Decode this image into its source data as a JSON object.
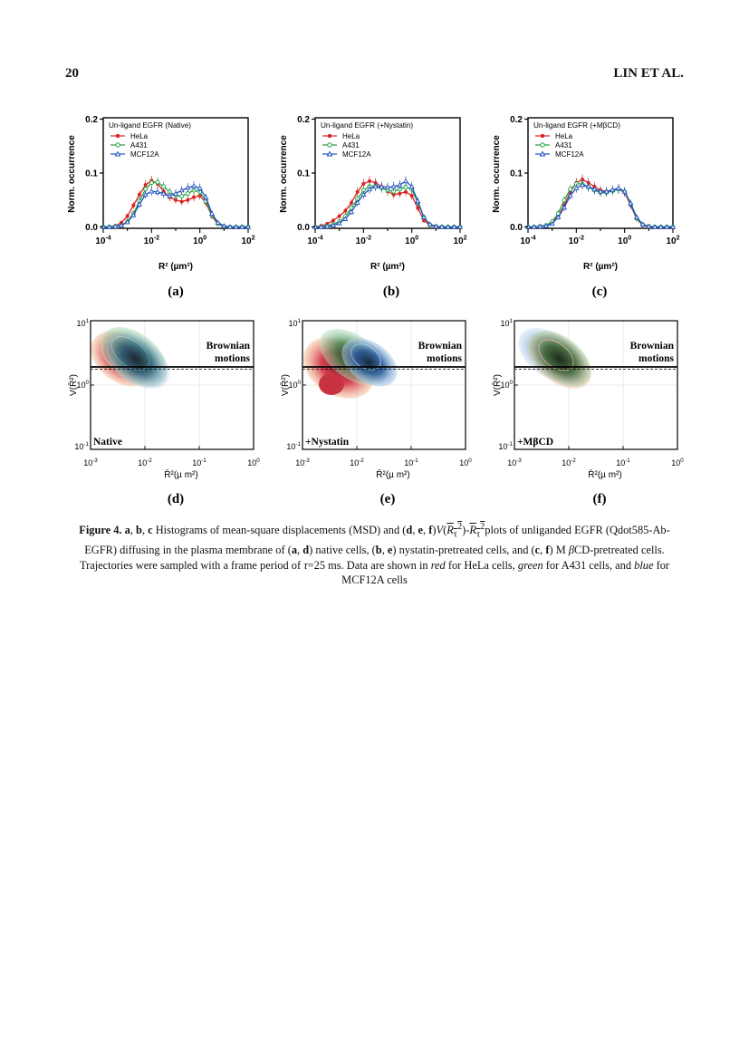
{
  "header": {
    "page_number": "20",
    "running_head": "LIN ET AL."
  },
  "histograms": {
    "y_axis_label": "Norm. occurrence",
    "x_axis_label": "R² (µm²)",
    "x_ticks": [
      "10-4",
      "10-2",
      "100",
      "102"
    ],
    "y_ticks": [
      "0.0",
      "0.1",
      "0.2"
    ],
    "legend": [
      "HeLa",
      "A431",
      "MCF12A"
    ],
    "colors": {
      "HeLa": "#e02020",
      "A431": "#20a040",
      "MCF12A": "#2050c0"
    },
    "panels": [
      {
        "title": "Un-ligand EGFR (Native)",
        "letter": "(a)"
      },
      {
        "title": "Un-ligand EGFR (+Nystatin)",
        "letter": "(b)"
      },
      {
        "title": "Un-ligand EGFR (+MβCD)",
        "letter": "(c)"
      }
    ]
  },
  "contours": {
    "y_axis_label": "V(R̄²)",
    "x_axis_label": "R̄²(µ m²)",
    "x_ticks": [
      "10-3",
      "10-2",
      "10-1",
      "100"
    ],
    "y_ticks": [
      "101",
      "100",
      "10-1"
    ],
    "brownian_label": [
      "Brownian",
      "motions"
    ],
    "panels": [
      {
        "condition": "Native",
        "letter": "(d)"
      },
      {
        "condition": "+Nystatin",
        "letter": "(e)"
      },
      {
        "condition": "+MβCD",
        "letter": "(f)"
      }
    ]
  },
  "chart_data": [
    {
      "type": "line",
      "title": "Un-ligand EGFR (Native)",
      "xlabel": "R² (µm²)",
      "ylabel": "Norm. occurrence",
      "xscale": "log",
      "xlim": [
        0.0001,
        100
      ],
      "ylim": [
        0,
        0.2
      ],
      "x": [
        0.0001,
        0.000178,
        0.000316,
        0.000562,
        0.001,
        0.00178,
        0.00316,
        0.00562,
        0.01,
        0.0178,
        0.0316,
        0.0562,
        0.1,
        0.178,
        0.316,
        0.562,
        1,
        1.78,
        3.16,
        5.62,
        10,
        17.8,
        31.6,
        56.2,
        100
      ],
      "series": [
        {
          "name": "HeLa",
          "values": [
            0,
            0,
            0.002,
            0.008,
            0.02,
            0.04,
            0.06,
            0.078,
            0.086,
            0.08,
            0.066,
            0.055,
            0.05,
            0.047,
            0.05,
            0.055,
            0.058,
            0.045,
            0.02,
            0.005,
            0.001,
            0,
            0,
            0,
            0
          ]
        },
        {
          "name": "A431",
          "values": [
            0,
            0,
            0.001,
            0.003,
            0.01,
            0.025,
            0.048,
            0.07,
            0.082,
            0.083,
            0.075,
            0.065,
            0.058,
            0.057,
            0.062,
            0.068,
            0.065,
            0.048,
            0.022,
            0.006,
            0.001,
            0,
            0,
            0,
            0
          ]
        },
        {
          "name": "MCF12A",
          "values": [
            0,
            0,
            0.001,
            0.003,
            0.009,
            0.022,
            0.042,
            0.06,
            0.066,
            0.065,
            0.062,
            0.058,
            0.062,
            0.068,
            0.073,
            0.076,
            0.072,
            0.055,
            0.025,
            0.008,
            0.002,
            0,
            0,
            0,
            0
          ]
        }
      ]
    },
    {
      "type": "line",
      "title": "Un-ligand EGFR (+Nystatin)",
      "xlabel": "R² (µm²)",
      "ylabel": "Norm. occurrence",
      "xscale": "log",
      "xlim": [
        0.0001,
        100
      ],
      "ylim": [
        0,
        0.2
      ],
      "x": [
        0.0001,
        0.000178,
        0.000316,
        0.000562,
        0.001,
        0.00178,
        0.00316,
        0.00562,
        0.01,
        0.0178,
        0.0316,
        0.0562,
        0.1,
        0.178,
        0.316,
        0.562,
        1,
        1.78,
        3.16,
        5.62,
        10,
        17.8,
        31.6,
        56.2,
        100
      ],
      "series": [
        {
          "name": "HeLa",
          "values": [
            0,
            0.002,
            0.006,
            0.012,
            0.02,
            0.03,
            0.045,
            0.065,
            0.08,
            0.085,
            0.082,
            0.075,
            0.066,
            0.06,
            0.062,
            0.065,
            0.058,
            0.035,
            0.012,
            0.003,
            0,
            0,
            0,
            0,
            0
          ]
        },
        {
          "name": "A431",
          "values": [
            0,
            0,
            0.002,
            0.005,
            0.01,
            0.02,
            0.035,
            0.052,
            0.068,
            0.075,
            0.076,
            0.072,
            0.068,
            0.066,
            0.07,
            0.074,
            0.07,
            0.045,
            0.018,
            0.004,
            0.001,
            0,
            0,
            0,
            0
          ]
        },
        {
          "name": "MCF12A",
          "values": [
            0,
            0,
            0.001,
            0.003,
            0.007,
            0.015,
            0.028,
            0.045,
            0.06,
            0.07,
            0.075,
            0.075,
            0.074,
            0.075,
            0.078,
            0.085,
            0.075,
            0.048,
            0.018,
            0.005,
            0.001,
            0,
            0,
            0,
            0
          ]
        }
      ]
    },
    {
      "type": "line",
      "title": "Un-ligand EGFR (+MβCD)",
      "xlabel": "R² (µm²)",
      "ylabel": "Norm. occurrence",
      "xscale": "log",
      "xlim": [
        0.0001,
        100
      ],
      "ylim": [
        0,
        0.2
      ],
      "x": [
        0.0001,
        0.000178,
        0.000316,
        0.000562,
        0.001,
        0.00178,
        0.00316,
        0.00562,
        0.01,
        0.0178,
        0.0316,
        0.0562,
        0.1,
        0.178,
        0.316,
        0.562,
        1,
        1.78,
        3.16,
        5.62,
        10,
        17.8,
        31.6,
        56.2,
        100
      ],
      "series": [
        {
          "name": "HeLa",
          "values": [
            0,
            0,
            0.001,
            0.003,
            0.008,
            0.02,
            0.04,
            0.065,
            0.082,
            0.088,
            0.082,
            0.075,
            0.068,
            0.066,
            0.068,
            0.07,
            0.064,
            0.04,
            0.015,
            0.003,
            0,
            0,
            0,
            0,
            0
          ]
        },
        {
          "name": "A431",
          "values": [
            0,
            0,
            0.001,
            0.003,
            0.01,
            0.025,
            0.05,
            0.07,
            0.08,
            0.08,
            0.074,
            0.068,
            0.064,
            0.064,
            0.067,
            0.07,
            0.065,
            0.042,
            0.016,
            0.004,
            0.001,
            0,
            0,
            0,
            0
          ]
        },
        {
          "name": "MCF12A",
          "values": [
            0,
            0,
            0.001,
            0.002,
            0.006,
            0.018,
            0.036,
            0.058,
            0.072,
            0.078,
            0.075,
            0.07,
            0.066,
            0.066,
            0.069,
            0.072,
            0.066,
            0.044,
            0.018,
            0.005,
            0.001,
            0,
            0,
            0,
            0
          ]
        }
      ]
    }
  ]
}
